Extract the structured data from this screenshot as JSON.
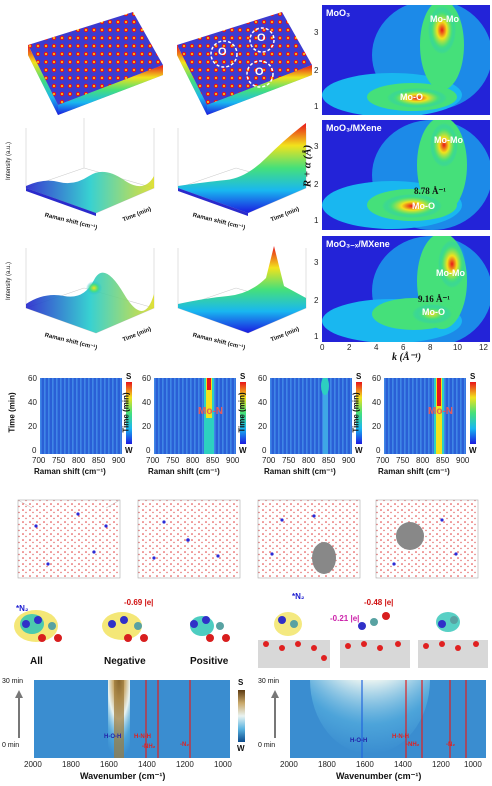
{
  "wavelet": {
    "axis_label_y": "R + α (Å)",
    "axis_label_x": "k (Å⁻¹)",
    "x_ticks": [
      "0",
      "2",
      "4",
      "6",
      "8",
      "10",
      "12"
    ],
    "y_ticks": [
      "3",
      "2",
      "1"
    ],
    "panels": [
      {
        "title": "MoO₃",
        "peak_hi": "Mo-Mo",
        "peak_lo": "Mo-O",
        "kval": ""
      },
      {
        "title": "MoO₃/MXene",
        "peak_hi": "Mo-Mo",
        "peak_lo": "Mo-O",
        "kval": "8.78 Å⁻¹"
      },
      {
        "title": "MoO₃₋ₓ/MXene",
        "peak_hi": "Mo-Mo",
        "peak_lo": "Mo-O",
        "kval": "9.16 Å⁻¹"
      }
    ]
  },
  "surface3d": {
    "o_labels": [
      "O",
      "O",
      "O"
    ],
    "z_label": "Intensity (a.u.)",
    "x_label": "Raman shift (cm⁻¹)",
    "y_label": "Time (min)"
  },
  "raman_maps": {
    "y_label": "Time (min)",
    "x_label": "Raman shift (cm⁻¹)",
    "x_ticks": [
      "700",
      "750",
      "800",
      "850",
      "900"
    ],
    "y_ticks": [
      "60",
      "40",
      "20",
      "0"
    ],
    "scale_top": "S",
    "scale_bottom": "W",
    "annotation": "Mo-N"
  },
  "charges": {
    "n2_label": "*N₂",
    "charge_a": "-0.69 |e|",
    "charge_b": "-0.21 |e|",
    "charge_c": "-0.48 |e|",
    "captions": [
      "All",
      "Negative",
      "Positive"
    ]
  },
  "ftir": {
    "time_top": "30 min",
    "time_bottom": "0 min",
    "x_label": "Wavenumber (cm⁻¹)",
    "x_ticks": [
      "2000",
      "1800",
      "1600",
      "1400",
      "1200",
      "1000"
    ],
    "scale_top": "S",
    "scale_bottom": "W",
    "bands": [
      "H-O-H",
      "H-N-H",
      "-NH₂",
      "-N₂"
    ]
  },
  "colors": {
    "jet_red": "#d7191c",
    "jet_blue": "#2b2bd6",
    "magenta": "#cc22aa",
    "red_text": "#d01010"
  }
}
